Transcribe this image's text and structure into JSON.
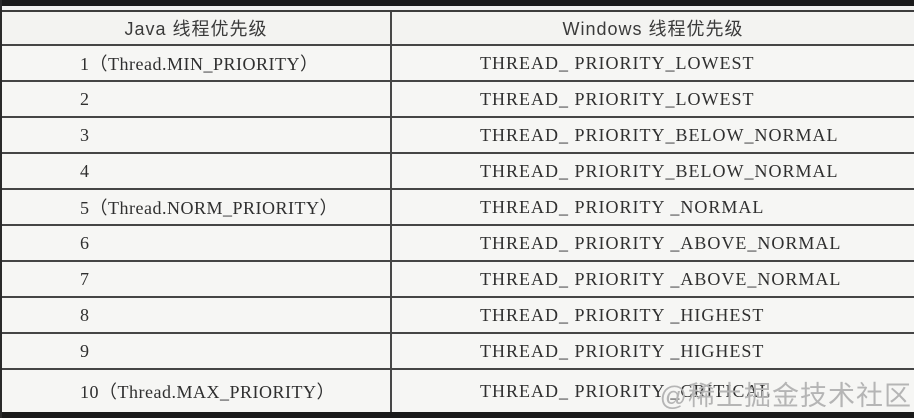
{
  "table": {
    "columns": [
      "Java 线程优先级",
      "Windows 线程优先级"
    ],
    "rows": [
      {
        "java": "1（Thread.MIN_PRIORITY）",
        "windows": "THREAD_ PRIORITY_LOWEST"
      },
      {
        "java": "2",
        "windows": "THREAD_ PRIORITY_LOWEST"
      },
      {
        "java": "3",
        "windows": "THREAD_ PRIORITY_BELOW_NORMAL"
      },
      {
        "java": "4",
        "windows": "THREAD_ PRIORITY_BELOW_NORMAL"
      },
      {
        "java": "5（Thread.NORM_PRIORITY）",
        "windows": "THREAD_ PRIORITY _NORMAL"
      },
      {
        "java": "6",
        "windows": "THREAD_ PRIORITY _ABOVE_NORMAL"
      },
      {
        "java": "7",
        "windows": "THREAD_ PRIORITY _ABOVE_NORMAL"
      },
      {
        "java": "8",
        "windows": "THREAD_ PRIORITY _HIGHEST"
      },
      {
        "java": "9",
        "windows": "THREAD_ PRIORITY _HIGHEST"
      },
      {
        "java": "10（Thread.MAX_PRIORITY）",
        "windows": "THREAD_ PRIORITY _CRITICAL"
      }
    ]
  },
  "watermark": {
    "text": "@稀土掘金技术社区"
  },
  "colors": {
    "thick_rule": "#1a1a1a",
    "thin_rule": "#454545",
    "text": "#2f2f2f",
    "watermark": "#b5b5b5",
    "paper": "#f2f2f0"
  }
}
